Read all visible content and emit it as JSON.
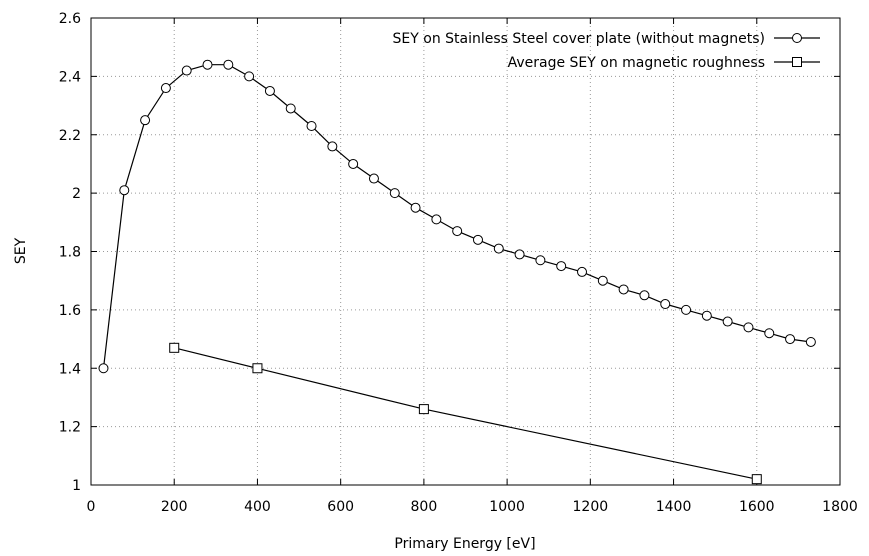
{
  "chart_data": {
    "type": "line",
    "title": "",
    "xlabel": "Primary Energy [eV]",
    "ylabel": "SEY",
    "xlim": [
      0,
      1800
    ],
    "ylim": [
      1,
      2.6
    ],
    "xticks": [
      0,
      200,
      400,
      600,
      800,
      1000,
      1200,
      1400,
      1600,
      1800
    ],
    "xtick_labels": [
      "0",
      "200",
      "400",
      "600",
      "800",
      "1000",
      "1200",
      "1400",
      "1600",
      "1800"
    ],
    "yticks": [
      1,
      1.2,
      1.4,
      1.6,
      1.8,
      2,
      2.2,
      2.4,
      2.6
    ],
    "ytick_labels": [
      "1",
      "1.2",
      "1.4",
      "1.6",
      "1.8",
      "2",
      "2.2",
      "2.4",
      "2.6"
    ],
    "grid": true,
    "legend_position": "top-right",
    "series": [
      {
        "name": "SEY on Stainless Steel cover plate (without magnets)",
        "marker": "circle",
        "x": [
          30,
          80,
          130,
          180,
          230,
          280,
          330,
          380,
          430,
          480,
          530,
          580,
          630,
          680,
          730,
          780,
          830,
          880,
          930,
          980,
          1030,
          1080,
          1130,
          1180,
          1230,
          1280,
          1330,
          1380,
          1430,
          1480,
          1530,
          1580,
          1630,
          1680,
          1730
        ],
        "y": [
          1.4,
          2.01,
          2.25,
          2.36,
          2.42,
          2.44,
          2.44,
          2.4,
          2.35,
          2.29,
          2.23,
          2.16,
          2.1,
          2.05,
          2.0,
          1.95,
          1.91,
          1.87,
          1.84,
          1.81,
          1.79,
          1.77,
          1.75,
          1.73,
          1.7,
          1.67,
          1.65,
          1.62,
          1.6,
          1.58,
          1.56,
          1.54,
          1.52,
          1.5,
          1.49
        ]
      },
      {
        "name": "Average SEY on magnetic roughness",
        "marker": "square",
        "x": [
          200,
          400,
          800,
          1600
        ],
        "y": [
          1.47,
          1.4,
          1.26,
          1.02
        ]
      }
    ]
  }
}
